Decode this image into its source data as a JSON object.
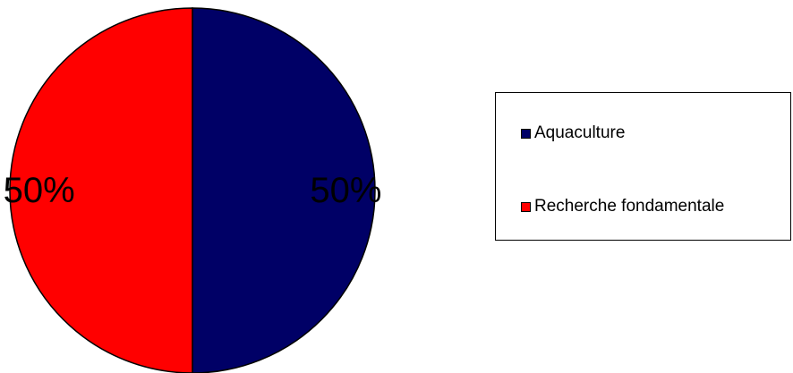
{
  "chart_data": {
    "type": "pie",
    "slices": [
      {
        "label": "Aquaculture",
        "value": 50,
        "display": "50%",
        "color": "#000066"
      },
      {
        "label": "Recherche fondamentale",
        "value": 50,
        "display": "50%",
        "color": "#ff0000"
      }
    ],
    "legend_placement": "right",
    "border_color": "#000000"
  }
}
